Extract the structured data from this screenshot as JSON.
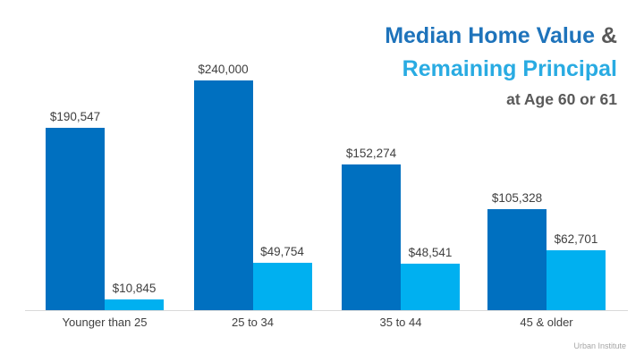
{
  "slide": {
    "title": {
      "line1_main": "Median Home Value ",
      "line1_amp": "&",
      "line2": "Remaining Principal",
      "line3": "at Age 60 or 61"
    },
    "footer": "Urban Institute",
    "colors": {
      "median_home_value": "#0070C0",
      "remaining_principal": "#00B0F0",
      "title_blue": "#1E73BB",
      "title_light_blue": "#29ABE2",
      "title_gray": "#595959",
      "label_gray": "#404040",
      "axis_line": "#D9D9D9",
      "footer_gray": "#A6A6A6"
    }
  },
  "chart_data": {
    "type": "bar",
    "title": "Median Home Value & Remaining Principal at Age 60 or 61",
    "categories": [
      "Younger than 25",
      "25 to 34",
      "35 to 44",
      "45 & older"
    ],
    "series": [
      {
        "name": "Median Home Value",
        "color_key": "median_home_value",
        "values": [
          190547,
          240000,
          152274,
          105328
        ],
        "labels": [
          "$190,547",
          "$240,000",
          "$152,274",
          "$105,328"
        ]
      },
      {
        "name": "Remaining Principal",
        "color_key": "remaining_principal",
        "values": [
          10845,
          49754,
          48541,
          62701
        ],
        "labels": [
          "$10,845",
          "$49,754",
          "$48,541",
          "$62,701"
        ]
      }
    ],
    "xlabel": "",
    "ylabel": "",
    "ylim": [
      0,
      240000
    ],
    "grid": false,
    "legend": "none",
    "value_labels": "above bars",
    "source": "Urban Institute"
  }
}
